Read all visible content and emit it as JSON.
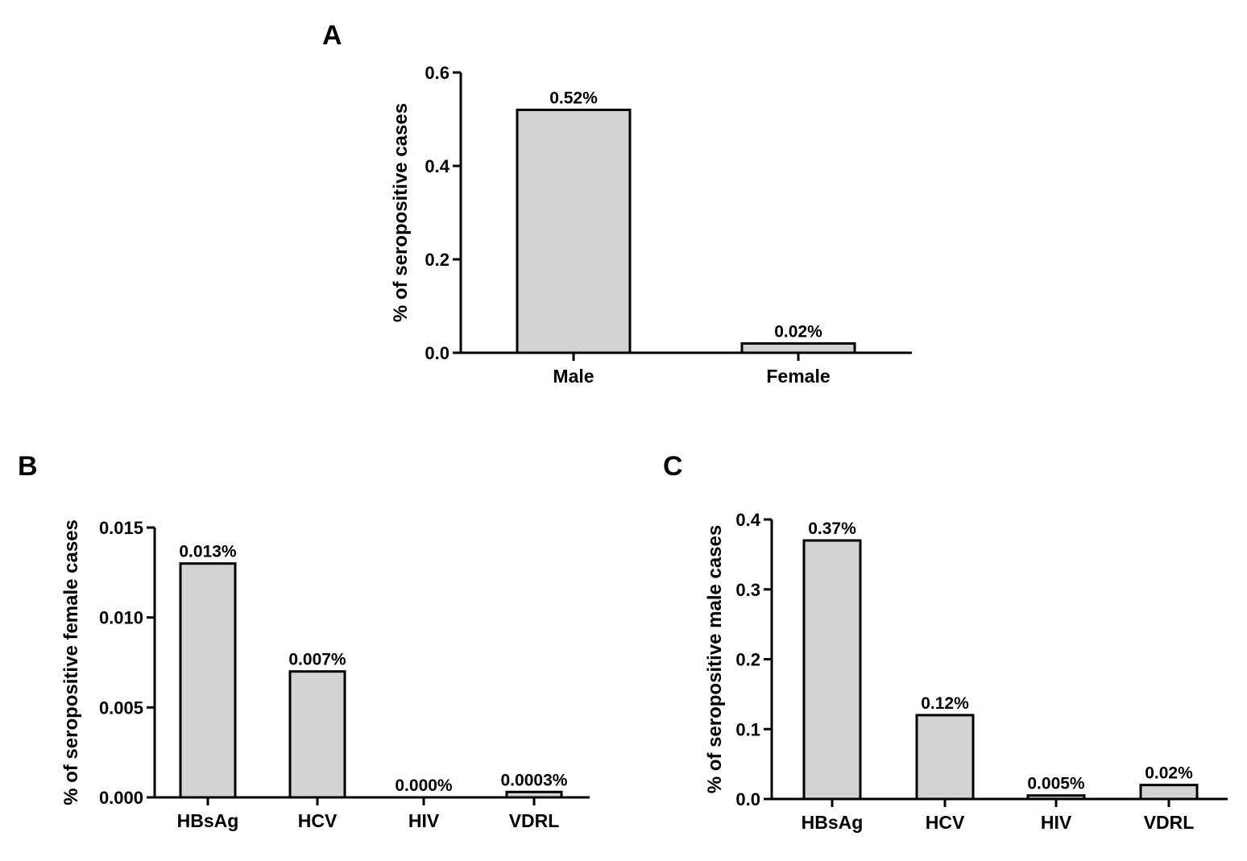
{
  "chart_data": [
    {
      "panel": "A",
      "type": "bar",
      "ylabel": "% of seropositive cases",
      "categories": [
        "Male",
        "Female"
      ],
      "values": [
        0.52,
        0.02
      ],
      "data_labels": [
        "0.52%",
        "0.02%"
      ],
      "ylim": [
        0,
        0.6
      ],
      "yticks": [
        0.0,
        0.2,
        0.4,
        0.6
      ],
      "ytick_labels": [
        "0.0",
        "0.2",
        "0.4",
        "0.6"
      ],
      "bar_color": "#d3d3d3"
    },
    {
      "panel": "B",
      "type": "bar",
      "ylabel": "% of seropositive female cases",
      "categories": [
        "HBsAg",
        "HCV",
        "HIV",
        "VDRL"
      ],
      "values": [
        0.013,
        0.007,
        0.0,
        0.0003
      ],
      "data_labels": [
        "0.013%",
        "0.007%",
        "0.000%",
        "0.0003%"
      ],
      "ylim": [
        0,
        0.015
      ],
      "yticks": [
        0.0,
        0.005,
        0.01,
        0.015
      ],
      "ytick_labels": [
        "0.000",
        "0.005",
        "0.010",
        "0.015"
      ],
      "bar_color": "#d3d3d3"
    },
    {
      "panel": "C",
      "type": "bar",
      "ylabel": "% of seropositive male cases",
      "categories": [
        "HBsAg",
        "HCV",
        "HIV",
        "VDRL"
      ],
      "values": [
        0.37,
        0.12,
        0.005,
        0.02
      ],
      "data_labels": [
        "0.37%",
        "0.12%",
        "0.005%",
        "0.02%"
      ],
      "ylim": [
        0,
        0.4
      ],
      "yticks": [
        0.0,
        0.1,
        0.2,
        0.3,
        0.4
      ],
      "ytick_labels": [
        "0.0",
        "0.1",
        "0.2",
        "0.3",
        "0.4"
      ],
      "bar_color": "#d3d3d3"
    }
  ]
}
